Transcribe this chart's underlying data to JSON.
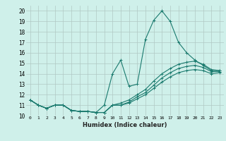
{
  "xlabel": "Humidex (Indice chaleur)",
  "background_color": "#cff0ea",
  "grid_color": "#b0c8c4",
  "line_color": "#1a7a6e",
  "xlim": [
    -0.5,
    23.5
  ],
  "ylim": [
    10,
    20.5
  ],
  "yticks": [
    10,
    11,
    12,
    13,
    14,
    15,
    16,
    17,
    18,
    19,
    20
  ],
  "xticks": [
    0,
    1,
    2,
    3,
    4,
    5,
    6,
    7,
    8,
    9,
    10,
    11,
    12,
    13,
    14,
    15,
    16,
    17,
    18,
    19,
    20,
    21,
    22,
    23
  ],
  "series": [
    [
      11.5,
      11.0,
      10.7,
      11.0,
      11.0,
      10.5,
      10.4,
      10.4,
      10.3,
      11.0,
      14.0,
      15.3,
      12.8,
      13.0,
      17.3,
      19.1,
      20.0,
      19.0,
      17.0,
      16.0,
      15.3,
      14.8,
      14.3,
      14.3
    ],
    [
      11.5,
      11.0,
      10.7,
      11.0,
      11.0,
      10.5,
      10.4,
      10.4,
      10.3,
      10.3,
      11.0,
      11.2,
      11.5,
      12.0,
      12.5,
      13.3,
      14.0,
      14.5,
      14.9,
      15.1,
      15.2,
      14.9,
      14.4,
      14.3
    ],
    [
      11.5,
      11.0,
      10.7,
      11.0,
      11.0,
      10.5,
      10.4,
      10.4,
      10.3,
      10.3,
      11.0,
      11.0,
      11.3,
      11.8,
      12.2,
      12.9,
      13.6,
      14.1,
      14.5,
      14.7,
      14.8,
      14.6,
      14.2,
      14.2
    ],
    [
      11.5,
      11.0,
      10.7,
      11.0,
      11.0,
      10.5,
      10.4,
      10.4,
      10.3,
      10.3,
      11.0,
      11.0,
      11.2,
      11.6,
      12.0,
      12.6,
      13.2,
      13.7,
      14.1,
      14.3,
      14.4,
      14.3,
      14.0,
      14.1
    ]
  ]
}
